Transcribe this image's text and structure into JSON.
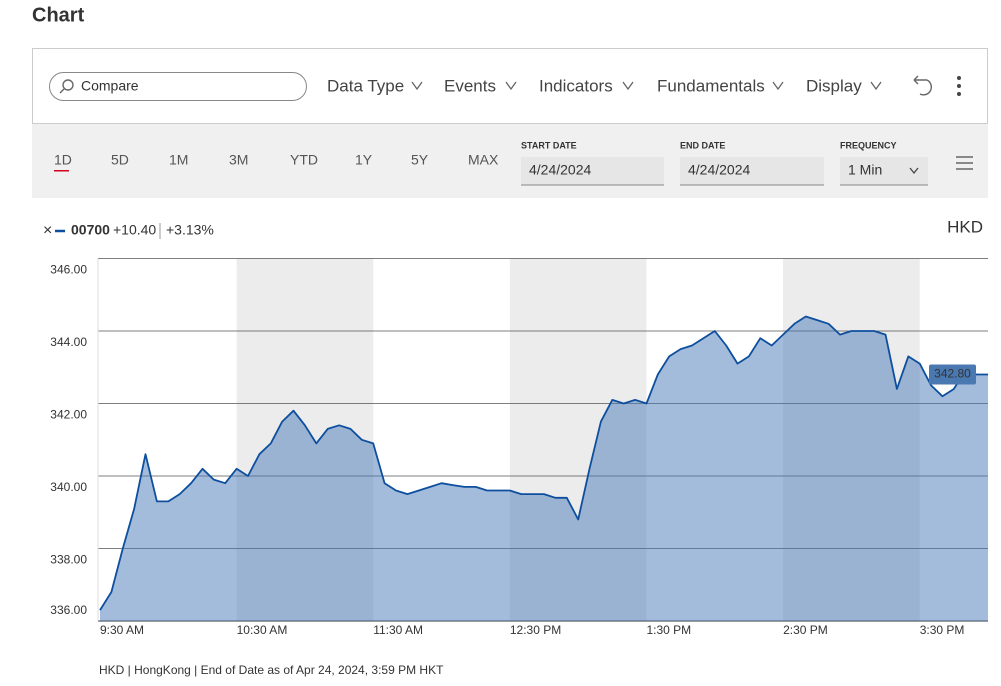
{
  "header": {
    "title": "Chart"
  },
  "toolbar": {
    "search_placeholder": "Compare",
    "menus": [
      "Data Type",
      "Events",
      "Indicators",
      "Fundamentals",
      "Display"
    ]
  },
  "periods": [
    "1D",
    "5D",
    "1M",
    "3M",
    "YTD",
    "1Y",
    "5Y",
    "MAX"
  ],
  "fields": [
    {
      "label": "START DATE",
      "value": "4/24/2024"
    },
    {
      "label": "END DATE",
      "value": "4/24/2024"
    },
    {
      "label": "FREQUENCY",
      "value": "1 Min"
    }
  ],
  "legend": {
    "change": "+10.40",
    "change_pct": "+3.13%",
    "currency": "HKD"
  },
  "chart_data": {
    "type": "area",
    "categories": [
      "9:30 AM",
      null,
      null,
      null,
      null,
      null,
      null,
      null,
      null,
      null,
      null,
      null,
      "10:30 AM",
      null,
      null,
      null,
      null,
      null,
      null,
      null,
      null,
      null,
      null,
      null,
      "11:30 AM",
      null,
      null,
      null,
      null,
      null,
      null,
      null,
      null,
      null,
      null,
      null,
      "12:30 PM",
      null,
      null,
      null,
      null,
      null,
      null,
      null,
      null,
      null,
      null,
      null,
      "1:30 PM",
      null,
      null,
      null,
      null,
      null,
      null,
      null,
      null,
      null,
      null,
      null,
      "2:30 PM",
      null,
      null,
      null,
      null,
      null,
      null,
      null,
      null,
      null,
      null,
      null,
      "3:30 PM",
      null,
      null,
      null,
      null,
      null,
      null
    ],
    "series": [
      {
        "name": "00700",
        "color": "#0d4f9e",
        "values": [
          336.3,
          336.8,
          338.0,
          339.1,
          340.6,
          339.3,
          339.3,
          339.5,
          339.8,
          340.2,
          339.9,
          339.8,
          340.2,
          340.0,
          340.6,
          340.9,
          341.5,
          341.8,
          341.4,
          340.9,
          341.3,
          341.4,
          341.3,
          341.0,
          340.9,
          339.8,
          339.6,
          339.5,
          339.6,
          339.7,
          339.8,
          339.75,
          339.7,
          339.7,
          339.6,
          339.6,
          339.6,
          339.5,
          339.5,
          339.5,
          339.4,
          339.4,
          338.8,
          340.2,
          341.5,
          342.1,
          342.0,
          342.1,
          342.0,
          342.8,
          343.3,
          343.5,
          343.6,
          343.8,
          344.0,
          343.6,
          343.1,
          343.3,
          343.8,
          343.6,
          343.9,
          344.2,
          344.4,
          344.3,
          344.2,
          343.9,
          344.0,
          344.0,
          344.0,
          343.9,
          342.4,
          343.3,
          343.1,
          342.5,
          342.2,
          342.4,
          342.9,
          342.8,
          342.8
        ],
        "value_labels": [
          null,
          null,
          null,
          null,
          null,
          null,
          null,
          null,
          null,
          null,
          null,
          null,
          null,
          null,
          null,
          null,
          null,
          null,
          null,
          null,
          null,
          null,
          null,
          null,
          null,
          null,
          null,
          null,
          null,
          null,
          null,
          null,
          null,
          null,
          null,
          null,
          null,
          null,
          null,
          null,
          null,
          null,
          null,
          null,
          null,
          null,
          null,
          null,
          null,
          null,
          null,
          null,
          null,
          null,
          null,
          null,
          null,
          null,
          null,
          null,
          null,
          null,
          null,
          null,
          null,
          null,
          null,
          null,
          null,
          null,
          null,
          null,
          null,
          null,
          null,
          null,
          null,
          null,
          "342.80"
        ]
      }
    ],
    "ylim": [
      336,
      346
    ],
    "yticks": [
      {
        "value": 336,
        "label": "336.00"
      },
      {
        "value": 338,
        "label": "338.00"
      },
      {
        "value": 340,
        "label": "340.00"
      },
      {
        "value": 342,
        "label": "342.00"
      },
      {
        "value": 344,
        "label": "344.00"
      },
      {
        "value": 346,
        "label": "346.00"
      }
    ],
    "grid": true,
    "footnote": "HKD | HongKong | End of Date as of Apr 24, 2024, 3:59 PM HKT"
  }
}
